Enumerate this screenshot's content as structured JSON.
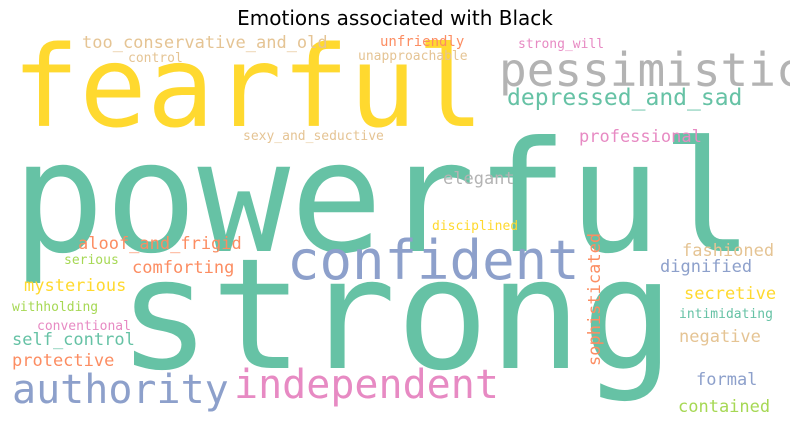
{
  "title": "Emotions associated with Black",
  "palette": {
    "teal": "#66c2a5",
    "yellow": "#ffd92f",
    "grey": "#b3b3b3",
    "blue": "#8da0cb",
    "pink": "#e78ac3",
    "orange": "#fc8d62",
    "lime": "#a6d854",
    "tan": "#e5c494"
  },
  "words": [
    {
      "text": "powerful",
      "color": "#66c2a5",
      "weight": 1.0
    },
    {
      "text": "strong",
      "color": "#66c2a5",
      "weight": 0.98
    },
    {
      "text": "fearful",
      "color": "#ffd92f",
      "weight": 0.72
    },
    {
      "text": "confident",
      "color": "#8da0cb",
      "weight": 0.4
    },
    {
      "text": "pessimistic",
      "color": "#b3b3b3",
      "weight": 0.36
    },
    {
      "text": "independent",
      "color": "#e78ac3",
      "weight": 0.34
    },
    {
      "text": "authority",
      "color": "#8da0cb",
      "weight": 0.32
    },
    {
      "text": "depressed_and_sad",
      "color": "#66c2a5",
      "weight": 0.2
    },
    {
      "text": "too_conservative_and_old",
      "color": "#e5c494",
      "weight": 0.15
    },
    {
      "text": "professional",
      "color": "#e78ac3",
      "weight": 0.15
    },
    {
      "text": "aloof_and_frigid",
      "color": "#fc8d62",
      "weight": 0.15
    },
    {
      "text": "elegant",
      "color": "#b3b3b3",
      "weight": 0.14
    },
    {
      "text": "comforting",
      "color": "#fc8d62",
      "weight": 0.14
    },
    {
      "text": "mysterious",
      "color": "#ffd92f",
      "weight": 0.14
    },
    {
      "text": "self_control",
      "color": "#66c2a5",
      "weight": 0.14
    },
    {
      "text": "protective",
      "color": "#fc8d62",
      "weight": 0.14
    },
    {
      "text": "fashioned",
      "color": "#e5c494",
      "weight": 0.14
    },
    {
      "text": "dignified",
      "color": "#8da0cb",
      "weight": 0.14
    },
    {
      "text": "secretive",
      "color": "#ffd92f",
      "weight": 0.14
    },
    {
      "text": "negative",
      "color": "#e5c494",
      "weight": 0.14
    },
    {
      "text": "formal",
      "color": "#8da0cb",
      "weight": 0.14
    },
    {
      "text": "contained",
      "color": "#a6d854",
      "weight": 0.14
    },
    {
      "text": "sophisticated",
      "color": "#fc8d62",
      "weight": 0.14
    },
    {
      "text": "unfriendly",
      "color": "#fc8d62",
      "weight": 0.12
    },
    {
      "text": "unapproachable",
      "color": "#e5c494",
      "weight": 0.11
    },
    {
      "text": "strong_will",
      "color": "#e78ac3",
      "weight": 0.11
    },
    {
      "text": "control",
      "color": "#e5c494",
      "weight": 0.11
    },
    {
      "text": "sexy_and_seductive",
      "color": "#e5c494",
      "weight": 0.11
    },
    {
      "text": "disciplined",
      "color": "#ffd92f",
      "weight": 0.11
    },
    {
      "text": "serious",
      "color": "#a6d854",
      "weight": 0.11
    },
    {
      "text": "withholding",
      "color": "#a6d854",
      "weight": 0.11
    },
    {
      "text": "conventional",
      "color": "#e78ac3",
      "weight": 0.11
    },
    {
      "text": "intimidating",
      "color": "#66c2a5",
      "weight": 0.11
    }
  ]
}
